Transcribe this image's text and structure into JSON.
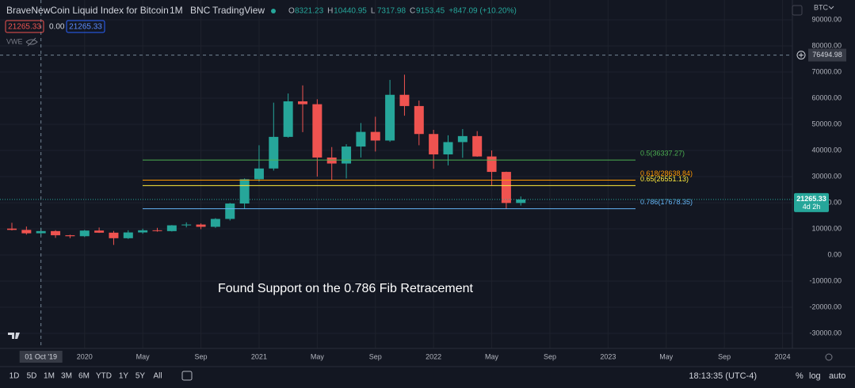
{
  "header": {
    "title": "BraveNewCoin Liquid Index for Bitcoin",
    "interval": "1M",
    "exchange": "BNC",
    "source": "TradingView",
    "ohlc": [
      {
        "label": "O",
        "value": "8321.23"
      },
      {
        "label": "H",
        "value": "10440.95"
      },
      {
        "label": "L",
        "value": "7317.98"
      },
      {
        "label": "C",
        "value": "9153.45"
      }
    ],
    "change": "+847.09 (+10.20%)",
    "sell": "21265.33",
    "spread": "0.00",
    "buy": "21265.33",
    "indicator": "VWE",
    "symbol": "BTC"
  },
  "chart_data": {
    "type": "candlestick",
    "x": [
      "2019-08",
      "2019-09",
      "2019-10",
      "2019-11",
      "2019-12",
      "2020-01",
      "2020-02",
      "2020-03",
      "2020-04",
      "2020-05",
      "2020-06",
      "2020-07",
      "2020-08",
      "2020-09",
      "2020-10",
      "2020-11",
      "2020-12",
      "2021-01",
      "2021-02",
      "2021-03",
      "2021-04",
      "2021-05",
      "2021-06",
      "2021-07",
      "2021-08",
      "2021-09",
      "2021-10",
      "2021-11",
      "2021-12",
      "2022-01",
      "2022-02",
      "2022-03",
      "2022-04",
      "2022-05",
      "2022-06",
      "2022-07"
    ],
    "open": [
      10100,
      9600,
      8321.23,
      9150,
      7550,
      7190,
      9350,
      8540,
      6420,
      8630,
      9450,
      9140,
      11350,
      11650,
      10780,
      13800,
      19700,
      29000,
      33100,
      45200,
      58800,
      57700,
      37300,
      35000,
      41500,
      47100,
      43800,
      61300,
      57000,
      46300,
      38500,
      43200,
      45500,
      37700,
      31800,
      19900
    ],
    "high": [
      12300,
      10900,
      10440.95,
      9500,
      7750,
      9600,
      10500,
      9190,
      9450,
      10080,
      10400,
      11450,
      12480,
      12090,
      14100,
      19900,
      29300,
      42000,
      58300,
      61800,
      64900,
      59600,
      41300,
      42400,
      50500,
      52900,
      67000,
      69000,
      59100,
      47900,
      45800,
      48200,
      47400,
      40000,
      31900,
      22400
    ],
    "low": [
      9400,
      7800,
      7317.98,
      6550,
      6450,
      6870,
      8450,
      3850,
      6150,
      8120,
      8900,
      8980,
      10550,
      9880,
      10380,
      13200,
      17600,
      28100,
      32300,
      44900,
      47000,
      30000,
      28800,
      29300,
      37300,
      39600,
      43300,
      53300,
      42000,
      33000,
      34300,
      37200,
      37600,
      26700,
      17600,
      18900
    ],
    "close": [
      9600,
      8300,
      9153.45,
      7550,
      7190,
      9350,
      8540,
      6420,
      8630,
      9450,
      9140,
      11350,
      11650,
      10780,
      13800,
      19700,
      29000,
      33100,
      45200,
      58800,
      57700,
      37300,
      35000,
      41500,
      47100,
      43800,
      61300,
      57000,
      46300,
      38500,
      43200,
      45500,
      37700,
      31800,
      19900,
      21265.33
    ],
    "up_color": "#26a69a",
    "down_color": "#ef5350",
    "ylim": [
      -35750,
      97580
    ],
    "yticks": [
      {
        "value": 90000,
        "label": "90000.00"
      },
      {
        "value": 80000,
        "label": "80000.00"
      },
      {
        "value": 70000,
        "label": "70000.00"
      },
      {
        "value": 60000,
        "label": "60000.00"
      },
      {
        "value": 50000,
        "label": "50000.00"
      },
      {
        "value": 40000,
        "label": "40000.00"
      },
      {
        "value": 30000,
        "label": "30000.00"
      },
      {
        "value": 20000,
        "label": "20000.00"
      },
      {
        "value": 10000,
        "label": "10000.00"
      },
      {
        "value": 0,
        "label": "0.00"
      },
      {
        "value": -10000,
        "label": "-10000.00"
      },
      {
        "value": -20000,
        "label": "-20000.00"
      },
      {
        "value": -30000,
        "label": "-30000.00"
      }
    ],
    "xticks": [
      {
        "value": "2020-01",
        "label": "2020"
      },
      {
        "value": "2020-05",
        "label": "May"
      },
      {
        "value": "2020-09",
        "label": "Sep"
      },
      {
        "value": "2021-01",
        "label": "2021"
      },
      {
        "value": "2021-05",
        "label": "May"
      },
      {
        "value": "2021-09",
        "label": "Sep"
      },
      {
        "value": "2022-01",
        "label": "2022"
      },
      {
        "value": "2022-05",
        "label": "May"
      },
      {
        "value": "2022-09",
        "label": "Sep"
      },
      {
        "value": "2023-01",
        "label": "2023"
      },
      {
        "value": "2023-05",
        "label": "May"
      },
      {
        "value": "2023-09",
        "label": "Sep"
      },
      {
        "value": "2024-01",
        "label": "2024"
      }
    ],
    "fib_levels": [
      {
        "label": "0.5(36337.27)",
        "value": 36337.27,
        "color": "#4caf50"
      },
      {
        "label": "0.618(28638.84)",
        "value": 28638.84,
        "color": "#ff9800"
      },
      {
        "label": "0.65(26551.13)",
        "value": 26551.13,
        "color": "#ffeb3b"
      },
      {
        "label": "0.786(17678.35)",
        "value": 17678.35,
        "color": "#64b5f6"
      }
    ],
    "annotation": "Found Support on the 0.786 Fib Retracement",
    "crosshair": {
      "x": "2019-10",
      "x_label": "01 Oct '19",
      "y": 76494.98,
      "y_label": "76494.98"
    },
    "last_price": {
      "value": 21265.33,
      "label": "21265.33",
      "countdown": "4d 2h"
    }
  },
  "toolbar": {
    "periods": [
      "1D",
      "5D",
      "1M",
      "3M",
      "6M",
      "YTD",
      "1Y",
      "5Y",
      "All"
    ],
    "time": "18:13:35 (UTC-4)",
    "percent": "%",
    "log": "log",
    "auto": "auto"
  }
}
